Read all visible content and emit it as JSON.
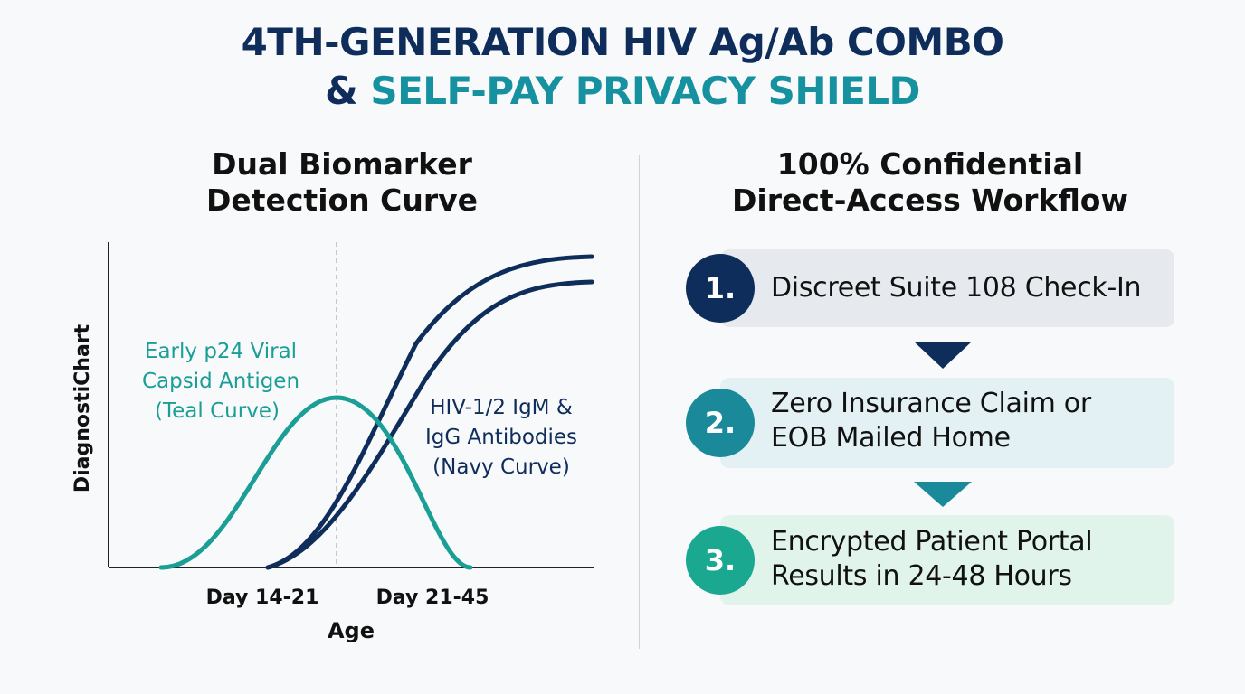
{
  "header": {
    "title_line1": "4TH-GENERATION HIV Ag/Ab COMBO",
    "title_amp": "& ",
    "title_accent": "SELF-PAY PRIVACY SHIELD"
  },
  "left_panel": {
    "title_line1": "Dual Biomarker",
    "title_line2": "Detection Curve"
  },
  "chart_data": {
    "type": "line",
    "title": "",
    "xlabel": "Age",
    "ylabel": "DiagnostiChart",
    "x_tick_labels": [
      "Day 14-21",
      "Day 21-45"
    ],
    "grid": false,
    "reference_line": "dashed vertical at Day 14-21",
    "series": [
      {
        "label_lines": [
          "Early p24 Viral",
          "Capsid Antigen",
          "(Teal Curve)"
        ],
        "color": "#1a9e96",
        "shape": "bell curve peaking near Day 14-21, returning to baseline shortly after Day 21-45"
      },
      {
        "label_lines": [
          "HIV-1/2 IgM &",
          "IgG Antibodies",
          "(Navy Curve)"
        ],
        "color": "#0f2d5b",
        "shape": "two sigmoid curves rising after Day 14-21 and plateauing"
      }
    ]
  },
  "right_panel": {
    "title_line1": "100% Confidential",
    "title_line2": "Direct-Access Workflow",
    "steps": [
      {
        "number": "1.",
        "line1": "Discreet Suite 108 Check-In",
        "line2": "",
        "circle_color": "#0f2d5b",
        "box_color": "#e6eaee"
      },
      {
        "number": "2.",
        "line1": "Zero Insurance Claim or",
        "line2": "EOB Mailed Home",
        "circle_color": "#1a8a9a",
        "box_color": "#e3f1f4"
      },
      {
        "number": "3.",
        "line1": "Encrypted Patient Portal",
        "line2": "Results in 24-48 Hours",
        "circle_color": "#1aa890",
        "box_color": "#e1f4ec"
      }
    ],
    "arrow_colors": [
      "#0f2d5b",
      "#1a8a9a"
    ]
  }
}
